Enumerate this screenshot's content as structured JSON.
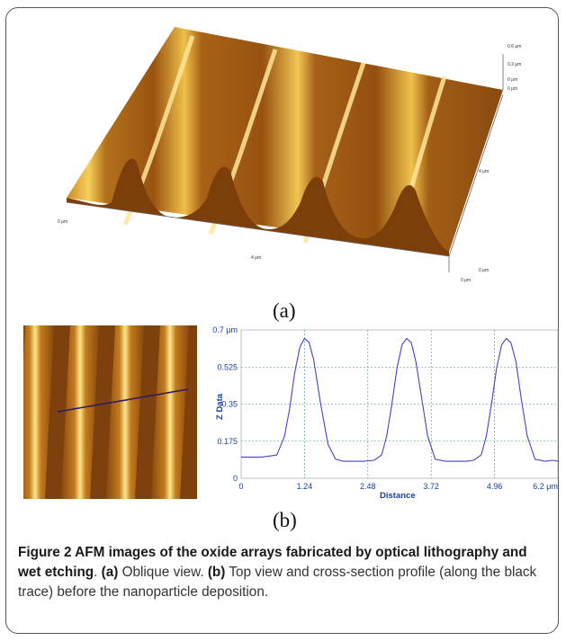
{
  "figure": {
    "panel_a": {
      "label": "(a)",
      "axis_labels": {
        "origin": "0 μm",
        "x_mid": "4 μm",
        "x_end": "0 μm",
        "y_mid": "4 μm",
        "y_end": "0 μm",
        "z_top": "0.6 μm",
        "z_mid": "0.3 μm",
        "z_zero": "0 μm",
        "z_base": "0 μm"
      }
    },
    "panel_b": {
      "label": "(b)"
    },
    "caption": {
      "title": "Figure 2 AFM images of the oxide arrays fabricated by optical lithography and wet etching",
      "after_title": ".",
      "a_label": "(a)",
      "a_text": " Oblique view. ",
      "b_label": "(b)",
      "b_text": " Top view and cross-section profile (along the black trace) before the nanoparticle deposition."
    }
  },
  "chart_data": {
    "type": "line",
    "xlabel": "Distance",
    "ylabel": "Z Data",
    "x_ticks": [
      "0",
      "1.24",
      "2.48",
      "3.72",
      "4.96",
      "6.2 μm"
    ],
    "y_ticks": [
      "0",
      "0.175",
      "0.35",
      "0.525",
      "0.7 μm"
    ],
    "xlim": [
      0,
      6.2
    ],
    "ylim": [
      0,
      0.7
    ],
    "grid": true,
    "line_color": "#4a40c8",
    "series": [
      {
        "x": [
          0,
          0.2,
          0.4,
          0.55,
          0.7,
          0.85,
          0.95,
          1.05,
          1.15,
          1.24,
          1.33,
          1.42,
          1.55,
          1.7,
          1.85,
          2.0,
          2.2,
          2.4,
          2.6,
          2.75,
          2.85,
          2.95,
          3.05,
          3.15,
          3.24,
          3.33,
          3.42,
          3.52,
          3.65,
          3.8,
          4.0,
          4.2,
          4.4,
          4.55,
          4.7,
          4.8,
          4.9,
          5.0,
          5.1,
          5.19,
          5.28,
          5.38,
          5.48,
          5.6,
          5.75,
          5.95,
          6.1,
          6.2
        ],
        "y": [
          0.1,
          0.1,
          0.1,
          0.105,
          0.11,
          0.2,
          0.33,
          0.5,
          0.62,
          0.66,
          0.64,
          0.56,
          0.36,
          0.16,
          0.09,
          0.08,
          0.08,
          0.08,
          0.085,
          0.11,
          0.2,
          0.35,
          0.52,
          0.63,
          0.66,
          0.64,
          0.55,
          0.4,
          0.2,
          0.09,
          0.08,
          0.08,
          0.08,
          0.085,
          0.11,
          0.2,
          0.35,
          0.52,
          0.63,
          0.66,
          0.64,
          0.55,
          0.38,
          0.2,
          0.09,
          0.08,
          0.085,
          0.08
        ]
      }
    ]
  }
}
